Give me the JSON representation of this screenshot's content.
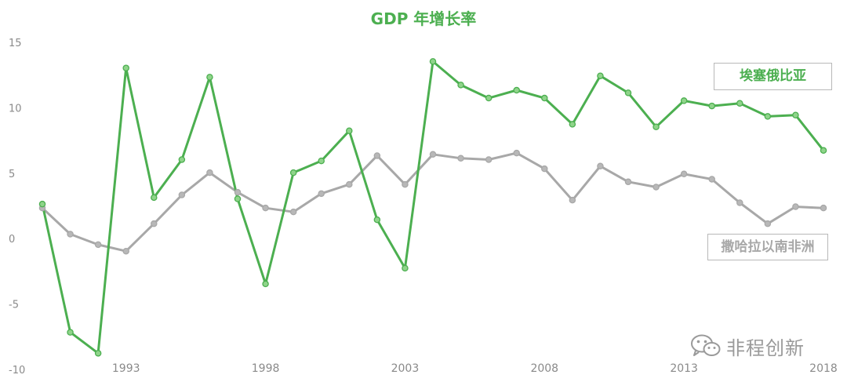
{
  "colors": {
    "ethiopia": "#4caf50",
    "ethiopia_marker_fill": "#8fd48a",
    "ssa": "#a8a8a8",
    "ssa_marker_fill": "#b8b8b8",
    "title": "#4caf50",
    "axis_text": "#8a8a8a",
    "watermark": "#9a9a9a"
  },
  "watermark": {
    "icon": "wechat-icon",
    "text": "非程创新"
  },
  "chart_data": {
    "type": "line",
    "title": "GDP 年增长率",
    "xlabel": "",
    "ylabel": "",
    "x": [
      1990,
      1991,
      1992,
      1993,
      1994,
      1995,
      1996,
      1997,
      1998,
      1999,
      2000,
      2001,
      2002,
      2003,
      2004,
      2005,
      2006,
      2007,
      2008,
      2009,
      2010,
      2011,
      2012,
      2013,
      2014,
      2015,
      2016,
      2017,
      2018
    ],
    "x_ticks": [
      "1993",
      "1998",
      "2003",
      "2008",
      "2013",
      "2018"
    ],
    "x_tick_values": [
      1993,
      1998,
      2003,
      2008,
      2013,
      2018
    ],
    "ylim": [
      -10,
      15
    ],
    "y_ticks": [
      "15",
      "10",
      "5",
      "0",
      "-5",
      "-10"
    ],
    "y_tick_values": [
      15,
      10,
      5,
      0,
      -5,
      -10
    ],
    "grid": false,
    "series": [
      {
        "name": "埃塞俄比亚",
        "values": [
          2.7,
          -7.1,
          -8.7,
          13.1,
          3.2,
          6.1,
          12.4,
          3.1,
          -3.4,
          5.1,
          6.0,
          8.3,
          1.5,
          -2.2,
          13.6,
          11.8,
          10.8,
          11.4,
          10.8,
          8.8,
          12.5,
          11.2,
          8.6,
          10.6,
          10.2,
          10.4,
          9.4,
          9.5,
          6.8
        ]
      },
      {
        "name": "撒哈拉以南非洲",
        "values": [
          2.4,
          0.4,
          -0.4,
          -0.9,
          1.2,
          3.4,
          5.1,
          3.6,
          2.4,
          2.1,
          3.5,
          4.2,
          6.4,
          4.2,
          6.5,
          6.2,
          6.1,
          6.6,
          5.4,
          3.0,
          5.6,
          4.4,
          4.0,
          5.0,
          4.6,
          2.8,
          1.2,
          2.5,
          2.4
        ]
      }
    ]
  }
}
